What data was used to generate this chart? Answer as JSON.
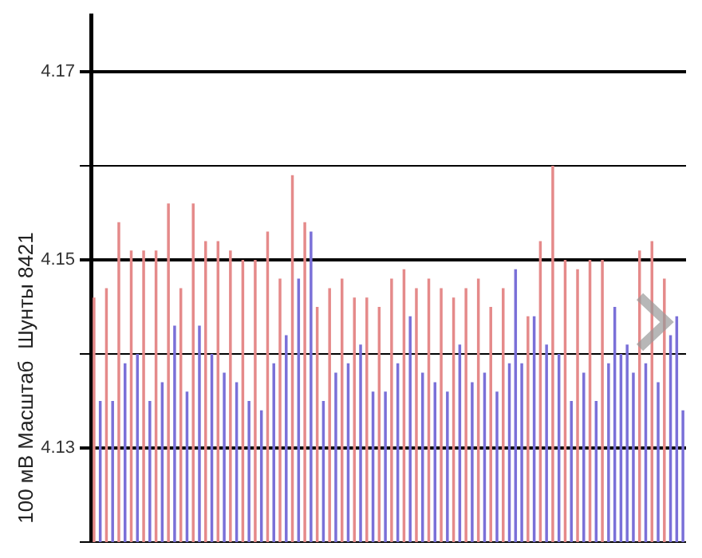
{
  "chart_data": {
    "type": "bar",
    "ylabel": "100 мВ Масштаб  Шунты 8421",
    "categories": [
      null,
      null,
      null,
      null,
      null,
      null,
      null,
      null,
      null,
      null,
      null,
      null,
      null,
      null,
      null,
      null,
      null,
      null,
      null,
      null,
      null,
      null,
      null,
      null,
      null,
      null,
      null,
      null,
      null,
      null,
      null,
      null,
      null,
      null,
      null,
      null,
      null,
      null,
      null,
      null,
      null,
      null,
      null,
      null,
      null,
      null,
      null,
      null,
      null,
      null,
      null,
      null,
      null,
      null,
      null,
      null,
      null,
      null,
      null,
      null,
      null,
      null,
      null,
      null,
      null,
      null,
      null,
      null,
      null,
      null,
      null,
      null,
      null,
      null,
      null,
      null,
      null,
      null,
      null,
      null,
      null,
      null,
      null,
      null,
      null,
      null,
      null,
      null,
      null,
      null,
      null,
      null,
      null,
      null,
      null,
      null
    ],
    "values": [
      4.146,
      4.135,
      4.147,
      4.135,
      4.154,
      4.139,
      4.151,
      4.14,
      4.151,
      4.135,
      4.151,
      4.137,
      4.156,
      4.143,
      4.147,
      4.136,
      4.156,
      4.143,
      4.152,
      4.14,
      4.152,
      4.138,
      4.151,
      4.137,
      4.15,
      4.135,
      4.15,
      4.134,
      4.153,
      4.139,
      4.148,
      4.142,
      4.159,
      4.148,
      4.154,
      4.153,
      4.145,
      4.135,
      4.147,
      4.138,
      4.148,
      4.139,
      4.146,
      4.141,
      4.146,
      4.136,
      4.145,
      4.136,
      4.148,
      4.139,
      4.149,
      4.144,
      4.147,
      4.138,
      4.148,
      4.137,
      4.147,
      4.136,
      4.146,
      4.141,
      4.147,
      4.137,
      4.148,
      4.138,
      4.145,
      4.136,
      4.147,
      4.139,
      4.149,
      4.139,
      4.144,
      4.144,
      4.152,
      4.141,
      4.16,
      4.14,
      4.15,
      4.135,
      4.149,
      4.138,
      4.15,
      4.135,
      4.15,
      4.139,
      4.145,
      4.14,
      4.141,
      4.138,
      4.151,
      4.139,
      4.152,
      4.137,
      4.148,
      4.142,
      4.144,
      4.134
    ],
    "colors": [
      "#e58a8a",
      "#7a70d8",
      "#e58a8a",
      "#7a70d8",
      "#e58a8a",
      "#7a70d8",
      "#e58a8a",
      "#7a70d8",
      "#e58a8a",
      "#7a70d8",
      "#e58a8a",
      "#7a70d8",
      "#e58a8a",
      "#7a70d8",
      "#e58a8a",
      "#7a70d8",
      "#e58a8a",
      "#7a70d8",
      "#e58a8a",
      "#7a70d8",
      "#e58a8a",
      "#7a70d8",
      "#e58a8a",
      "#7a70d8",
      "#e58a8a",
      "#7a70d8",
      "#e58a8a",
      "#7a70d8",
      "#e58a8a",
      "#7a70d8",
      "#e58a8a",
      "#7a70d8",
      "#e58a8a",
      "#7a70d8",
      "#e58a8a",
      "#7a70d8",
      "#e58a8a",
      "#7a70d8",
      "#e58a8a",
      "#7a70d8",
      "#e58a8a",
      "#7a70d8",
      "#e58a8a",
      "#7a70d8",
      "#e58a8a",
      "#7a70d8",
      "#e58a8a",
      "#7a70d8",
      "#e58a8a",
      "#7a70d8",
      "#e58a8a",
      "#7a70d8",
      "#e58a8a",
      "#7a70d8",
      "#e58a8a",
      "#7a70d8",
      "#e58a8a",
      "#7a70d8",
      "#e58a8a",
      "#7a70d8",
      "#e58a8a",
      "#7a70d8",
      "#e58a8a",
      "#7a70d8",
      "#e58a8a",
      "#7a70d8",
      "#e58a8a",
      "#7a70d8",
      "#7a70d8",
      "#7a70d8",
      "#e58a8a",
      "#7a70d8",
      "#e58a8a",
      "#7a70d8",
      "#e58a8a",
      "#7a70d8",
      "#e58a8a",
      "#7a70d8",
      "#e58a8a",
      "#7a70d8",
      "#e58a8a",
      "#7a70d8",
      "#e58a8a",
      "#7a70d8",
      "#7a70d8",
      "#7a70d8",
      "#7a70d8",
      "#7a70d8",
      "#e58a8a",
      "#7a70d8",
      "#e58a8a",
      "#7a70d8",
      "#e58a8a",
      "#7a70d8",
      "#7a70d8",
      "#7a70d8"
    ],
    "ylim": [
      4.12,
      4.176
    ],
    "yticks": [
      {
        "value": 4.12,
        "label": null
      },
      4.13,
      {
        "value": 4.14,
        "label": null
      },
      4.15,
      {
        "value": 4.16,
        "label": null
      },
      4.17
    ],
    "grid": "y",
    "tick_labels": "y"
  }
}
